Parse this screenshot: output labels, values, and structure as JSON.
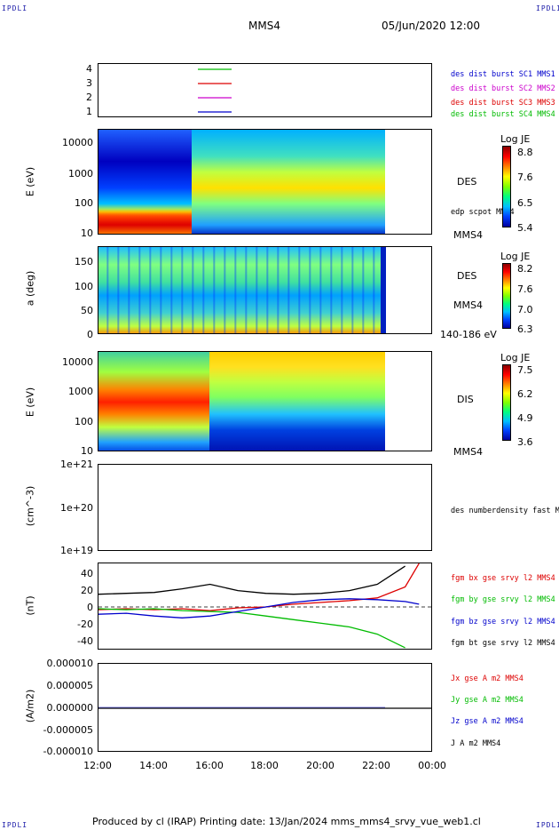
{
  "header": {
    "corner_tl": "IPDLI",
    "corner_tr": "IPDLI",
    "corner_bl": "IPDLI",
    "corner_br": "IPDLI",
    "spacecraft": "MMS4",
    "datetime": "05/Jun/2020 12:00"
  },
  "footer": {
    "text": "Produced by cl (IRAP)   Printing date: 13/Jan/2024   mms_mms4_srvy_vue_web1.cl"
  },
  "colors": {
    "blue": "#0000cc",
    "magenta": "#cc00cc",
    "red": "#dd0000",
    "green": "#00bb00",
    "black": "#000000"
  },
  "chart_data": [
    {
      "type": "line",
      "title": "",
      "ylabel": "",
      "yticks": [
        "4",
        "3",
        "2",
        "1"
      ],
      "ylim": [
        0.5,
        4.5
      ],
      "legend": [
        {
          "name": "des dist burst SC1 MMS1",
          "color": "#0000cc"
        },
        {
          "name": "des dist burst SC2 MMS2",
          "color": "#cc00cc"
        },
        {
          "name": "des dist burst SC3 MMS3",
          "color": "#dd0000"
        },
        {
          "name": "des dist burst SC4 MMS4",
          "color": "#00bb00"
        }
      ],
      "series": [
        {
          "name": "des dist burst SC4 MMS4",
          "level": 4,
          "x": [
            "15:50",
            "16:50"
          ]
        },
        {
          "name": "des dist burst SC3 MMS3",
          "level": 3,
          "x": [
            "15:50",
            "16:50"
          ]
        },
        {
          "name": "des dist burst SC2 MMS2",
          "level": 2,
          "x": [
            "15:50",
            "16:50"
          ]
        },
        {
          "name": "des dist burst SC1 MMS1",
          "level": 1,
          "x": [
            "15:50",
            "16:50"
          ]
        }
      ]
    },
    {
      "type": "heatmap",
      "ylabel": "E (eV)",
      "yticks": [
        "10000",
        "1000",
        "100",
        "10"
      ],
      "ylim": [
        10,
        30000
      ],
      "label": "DES",
      "overlay": "edp scpot MMS4",
      "sc": "MMS4",
      "colorbar": {
        "title": "Log JE",
        "ticks": [
          "8.8",
          "7.6",
          "6.5",
          "5.4"
        ],
        "range": [
          5.4,
          8.8
        ]
      }
    },
    {
      "type": "heatmap",
      "ylabel": "a (deg)",
      "yticks": [
        "150",
        "100",
        "50",
        "0"
      ],
      "ylim": [
        0,
        180
      ],
      "label": "DES",
      "sc": "MMS4",
      "energy_range": "140-186 eV",
      "colorbar": {
        "title": "Log JE",
        "ticks": [
          "8.2",
          "7.6",
          "7.0",
          "6.3"
        ],
        "range": [
          6.3,
          8.2
        ]
      }
    },
    {
      "type": "heatmap",
      "ylabel": "E (eV)",
      "yticks": [
        "10000",
        "1000",
        "100",
        "10"
      ],
      "ylim": [
        10,
        20000
      ],
      "label": "DIS",
      "sc": "MMS4",
      "colorbar": {
        "title": "Log JE",
        "ticks": [
          "7.5",
          "6.2",
          "4.9",
          "3.6"
        ],
        "range": [
          3.6,
          7.5
        ]
      }
    },
    {
      "type": "line",
      "ylabel": "(cm^-3)",
      "yticks": [
        "1e+21",
        "1e+20",
        "1e+19"
      ],
      "ylim": [
        1e+19,
        1e+21
      ],
      "legend": [
        {
          "name": "des numberdensity fast M",
          "color": "#000000"
        }
      ],
      "series": []
    },
    {
      "type": "line",
      "ylabel": "(nT)",
      "yticks": [
        "40",
        "20",
        "0",
        "-20",
        "-40"
      ],
      "ylim": [
        -48,
        48
      ],
      "x": [
        "12:00",
        "13:00",
        "14:00",
        "15:00",
        "16:00",
        "17:00",
        "18:00",
        "19:00",
        "20:00",
        "21:00",
        "22:00",
        "23:00",
        "23:30"
      ],
      "series": [
        {
          "name": "fgm bx gse srvy l2 MMS4",
          "color": "#dd0000",
          "values": [
            -3,
            -2,
            -3,
            -2,
            -4,
            -1,
            0,
            3,
            5,
            7,
            10,
            22,
            48
          ]
        },
        {
          "name": "fgm by gse srvy l2 MMS4",
          "color": "#00bb00",
          "values": [
            -2,
            -3,
            -2,
            -4,
            -5,
            -6,
            -10,
            -14,
            -18,
            -22,
            -30,
            -45,
            null
          ]
        },
        {
          "name": "fgm bz gse srvy l2 MMS4",
          "color": "#0000cc",
          "values": [
            -8,
            -7,
            -10,
            -12,
            -10,
            -5,
            0,
            5,
            8,
            9,
            8,
            6,
            3
          ]
        },
        {
          "name": "fgm bt gse srvy l2 MMS4",
          "color": "#000000",
          "values": [
            14,
            15,
            16,
            20,
            25,
            18,
            15,
            14,
            15,
            18,
            25,
            45,
            null
          ]
        }
      ]
    },
    {
      "type": "line",
      "ylabel": "(A/m2)",
      "yticks": [
        "0.000010",
        "0.000005",
        "0.000000",
        "-0.000005",
        "-0.000010"
      ],
      "ylim": [
        -1e-05,
        1e-05
      ],
      "series": [
        {
          "name": "Jx gse A m2 MMS4",
          "color": "#dd0000"
        },
        {
          "name": "Jy gse A m2 MMS4",
          "color": "#00bb00"
        },
        {
          "name": "Jz gse A m2 MMS4",
          "color": "#0000cc"
        },
        {
          "name": "J A m2 MMS4",
          "color": "#000000"
        }
      ]
    }
  ],
  "xaxis": {
    "ticks": [
      "12:00",
      "14:00",
      "16:00",
      "18:00",
      "20:00",
      "22:00",
      "00:00"
    ]
  }
}
